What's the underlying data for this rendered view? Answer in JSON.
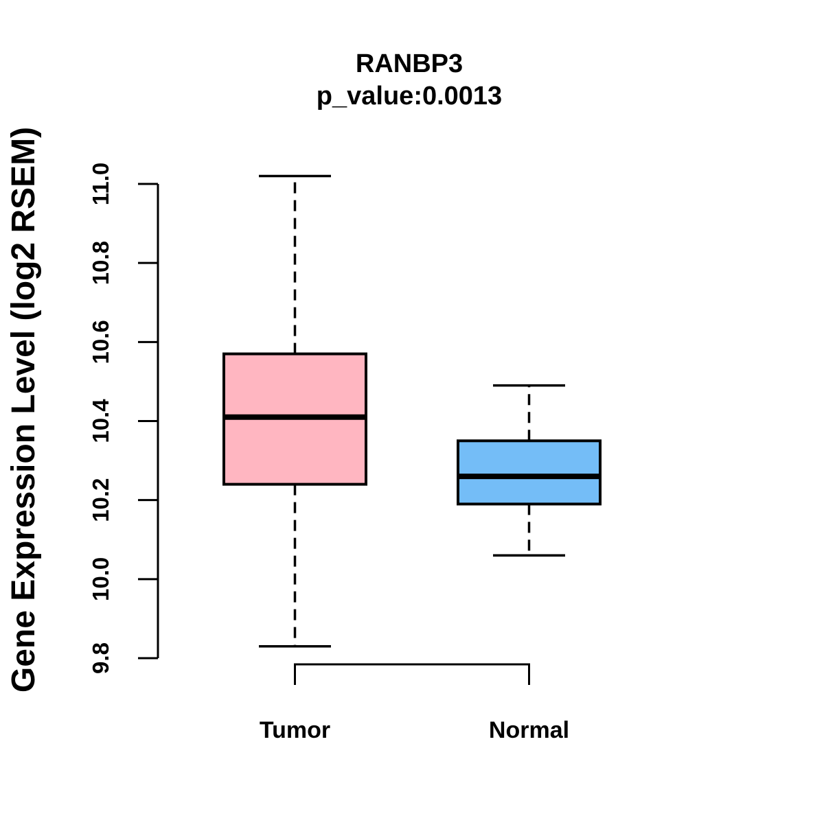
{
  "title": {
    "line1": "RANBP3",
    "line2": "p_value:0.0013"
  },
  "chart_data": {
    "type": "boxplot",
    "title": "RANBP3",
    "subtitle": "p_value:0.0013",
    "xlabel": "",
    "ylabel": "Gene Expression Level (log2 RSEM)",
    "categories": [
      "Tumor",
      "Normal"
    ],
    "axis_range": [
      9.8,
      11.0
    ],
    "yticks": [
      "9.8",
      "10.0",
      "10.2",
      "10.4",
      "10.6",
      "10.8",
      "11.0"
    ],
    "grid": false,
    "legend": "none",
    "series": [
      {
        "name": "Tumor",
        "fill_color": "#FFB6C1",
        "whisker_low": 9.83,
        "q1": 10.24,
        "median": 10.41,
        "q3": 10.57,
        "whisker_high": 11.02
      },
      {
        "name": "Normal",
        "fill_color": "#74BDF7",
        "whisker_low": 10.06,
        "q1": 10.19,
        "median": 10.26,
        "q3": 10.35,
        "whisker_high": 10.49
      }
    ]
  },
  "colors": {
    "line": "#000000",
    "text": "#000000",
    "background": "#FFFFFF",
    "tumor_fill": "#FFB6C1",
    "normal_fill": "#74BDF7"
  }
}
